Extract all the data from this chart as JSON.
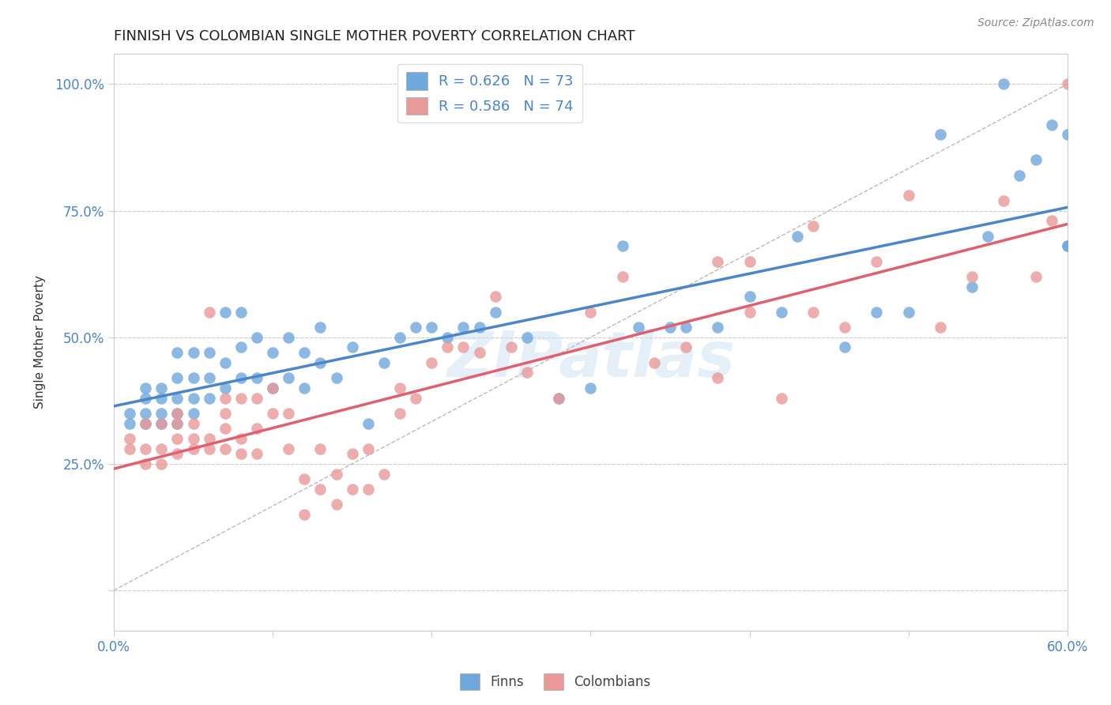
{
  "title": "FINNISH VS COLOMBIAN SINGLE MOTHER POVERTY CORRELATION CHART",
  "source": "Source: ZipAtlas.com",
  "ylabel": "Single Mother Poverty",
  "legend_blue": "R = 0.626   N = 73",
  "legend_pink": "R = 0.586   N = 74",
  "legend_labels": [
    "Finns",
    "Colombians"
  ],
  "xlim": [
    0.0,
    0.6
  ],
  "ylim": [
    -0.08,
    1.06
  ],
  "blue_color": "#6fa8dc",
  "pink_color": "#ea9999",
  "blue_line_color": "#4a86c8",
  "pink_line_color": "#e06070",
  "diag_color": "#bbbbbb",
  "watermark": "ZIPatlas",
  "title_fontsize": 13,
  "axis_color": "#4a86c8",
  "grid_color": "#cccccc",
  "finns_x": [
    0.01,
    0.01,
    0.02,
    0.02,
    0.02,
    0.02,
    0.03,
    0.03,
    0.03,
    0.03,
    0.04,
    0.04,
    0.04,
    0.04,
    0.04,
    0.05,
    0.05,
    0.05,
    0.05,
    0.06,
    0.06,
    0.06,
    0.07,
    0.07,
    0.07,
    0.08,
    0.08,
    0.08,
    0.09,
    0.09,
    0.1,
    0.1,
    0.11,
    0.11,
    0.12,
    0.12,
    0.13,
    0.13,
    0.14,
    0.15,
    0.16,
    0.17,
    0.18,
    0.19,
    0.2,
    0.21,
    0.22,
    0.23,
    0.24,
    0.26,
    0.28,
    0.3,
    0.32,
    0.33,
    0.35,
    0.36,
    0.38,
    0.4,
    0.42,
    0.43,
    0.46,
    0.48,
    0.5,
    0.52,
    0.54,
    0.55,
    0.56,
    0.57,
    0.58,
    0.59,
    0.6,
    0.6,
    0.6
  ],
  "finns_y": [
    0.33,
    0.35,
    0.33,
    0.35,
    0.38,
    0.4,
    0.33,
    0.35,
    0.38,
    0.4,
    0.33,
    0.35,
    0.38,
    0.42,
    0.47,
    0.35,
    0.38,
    0.42,
    0.47,
    0.38,
    0.42,
    0.47,
    0.4,
    0.45,
    0.55,
    0.42,
    0.48,
    0.55,
    0.42,
    0.5,
    0.4,
    0.47,
    0.42,
    0.5,
    0.4,
    0.47,
    0.45,
    0.52,
    0.42,
    0.48,
    0.33,
    0.45,
    0.5,
    0.52,
    0.52,
    0.5,
    0.52,
    0.52,
    0.55,
    0.5,
    0.38,
    0.4,
    0.68,
    0.52,
    0.52,
    0.52,
    0.52,
    0.58,
    0.55,
    0.7,
    0.48,
    0.55,
    0.55,
    0.9,
    0.6,
    0.7,
    1.0,
    0.82,
    0.85,
    0.92,
    0.68,
    0.9,
    0.68
  ],
  "colombians_x": [
    0.01,
    0.01,
    0.02,
    0.02,
    0.02,
    0.03,
    0.03,
    0.03,
    0.04,
    0.04,
    0.04,
    0.04,
    0.05,
    0.05,
    0.05,
    0.06,
    0.06,
    0.06,
    0.07,
    0.07,
    0.07,
    0.07,
    0.08,
    0.08,
    0.08,
    0.09,
    0.09,
    0.09,
    0.1,
    0.1,
    0.11,
    0.11,
    0.12,
    0.12,
    0.13,
    0.13,
    0.14,
    0.14,
    0.15,
    0.15,
    0.16,
    0.16,
    0.17,
    0.18,
    0.18,
    0.19,
    0.2,
    0.21,
    0.22,
    0.23,
    0.24,
    0.25,
    0.26,
    0.28,
    0.3,
    0.32,
    0.34,
    0.36,
    0.38,
    0.38,
    0.4,
    0.4,
    0.42,
    0.44,
    0.44,
    0.46,
    0.48,
    0.5,
    0.52,
    0.54,
    0.56,
    0.58,
    0.59,
    0.6
  ],
  "colombians_y": [
    0.28,
    0.3,
    0.25,
    0.28,
    0.33,
    0.25,
    0.28,
    0.33,
    0.27,
    0.3,
    0.33,
    0.35,
    0.28,
    0.3,
    0.33,
    0.28,
    0.3,
    0.55,
    0.28,
    0.32,
    0.35,
    0.38,
    0.27,
    0.3,
    0.38,
    0.27,
    0.32,
    0.38,
    0.35,
    0.4,
    0.28,
    0.35,
    0.15,
    0.22,
    0.2,
    0.28,
    0.17,
    0.23,
    0.2,
    0.27,
    0.2,
    0.28,
    0.23,
    0.35,
    0.4,
    0.38,
    0.45,
    0.48,
    0.48,
    0.47,
    0.58,
    0.48,
    0.43,
    0.38,
    0.55,
    0.62,
    0.45,
    0.48,
    0.42,
    0.65,
    0.55,
    0.65,
    0.38,
    0.55,
    0.72,
    0.52,
    0.65,
    0.78,
    0.52,
    0.62,
    0.77,
    0.62,
    0.73,
    1.0
  ]
}
